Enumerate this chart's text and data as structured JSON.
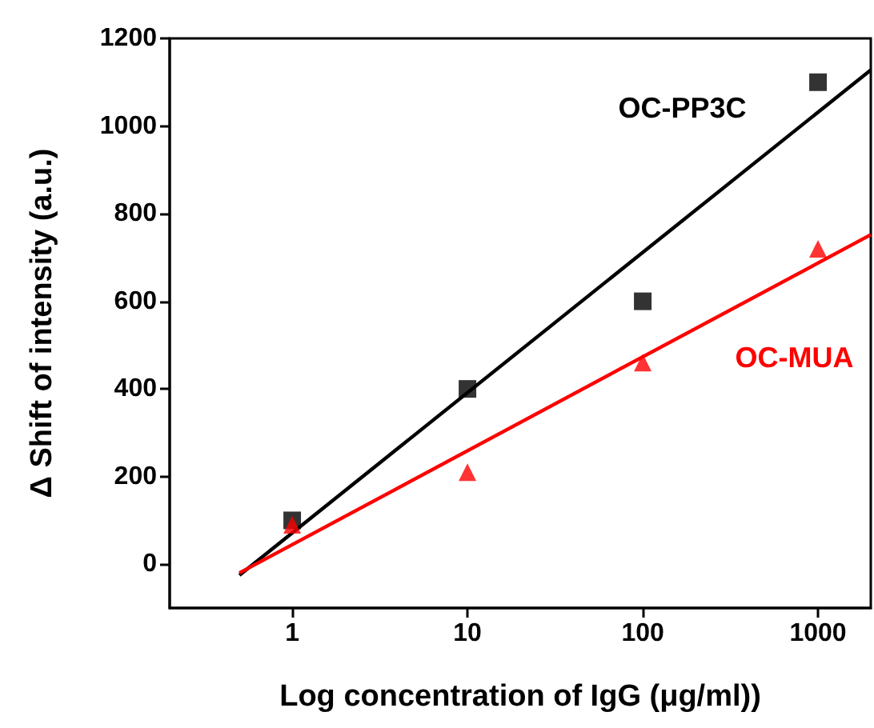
{
  "chart_data": {
    "type": "scatter",
    "xlabel": "Log concentration of IgG (μg/ml))",
    "ylabel": "Δ Shift of intensity (a.u.)",
    "log": "x",
    "xlim": [
      0.2,
      2000
    ],
    "xticks": [
      1,
      10,
      100,
      1000
    ],
    "ylim": [
      -100,
      1200
    ],
    "yticks": [
      0,
      200,
      400,
      600,
      800,
      1000,
      1200
    ],
    "grid": false,
    "legend": false,
    "series": [
      {
        "name": "OC-PP3C",
        "color": "#000000",
        "marker": "square",
        "x": [
          1,
          10,
          100,
          1000
        ],
        "values": [
          100,
          400,
          600,
          1100
        ]
      },
      {
        "name": "OC-MUA",
        "color": "#ff0000",
        "marker": "triangle",
        "x": [
          1,
          10,
          100,
          1000
        ],
        "values": [
          90,
          210,
          460,
          720
        ]
      },
      {
        "type": "line",
        "color": "#000000",
        "marker": "none",
        "line_style": "solid",
        "x": [
          0.5,
          2000
        ],
        "values": [
          -25,
          1128
        ]
      },
      {
        "type": "line",
        "color": "#ff0000",
        "marker": "none",
        "line_style": "solid",
        "x": [
          0.5,
          2000
        ],
        "values": [
          -20,
          752
        ]
      }
    ]
  }
}
